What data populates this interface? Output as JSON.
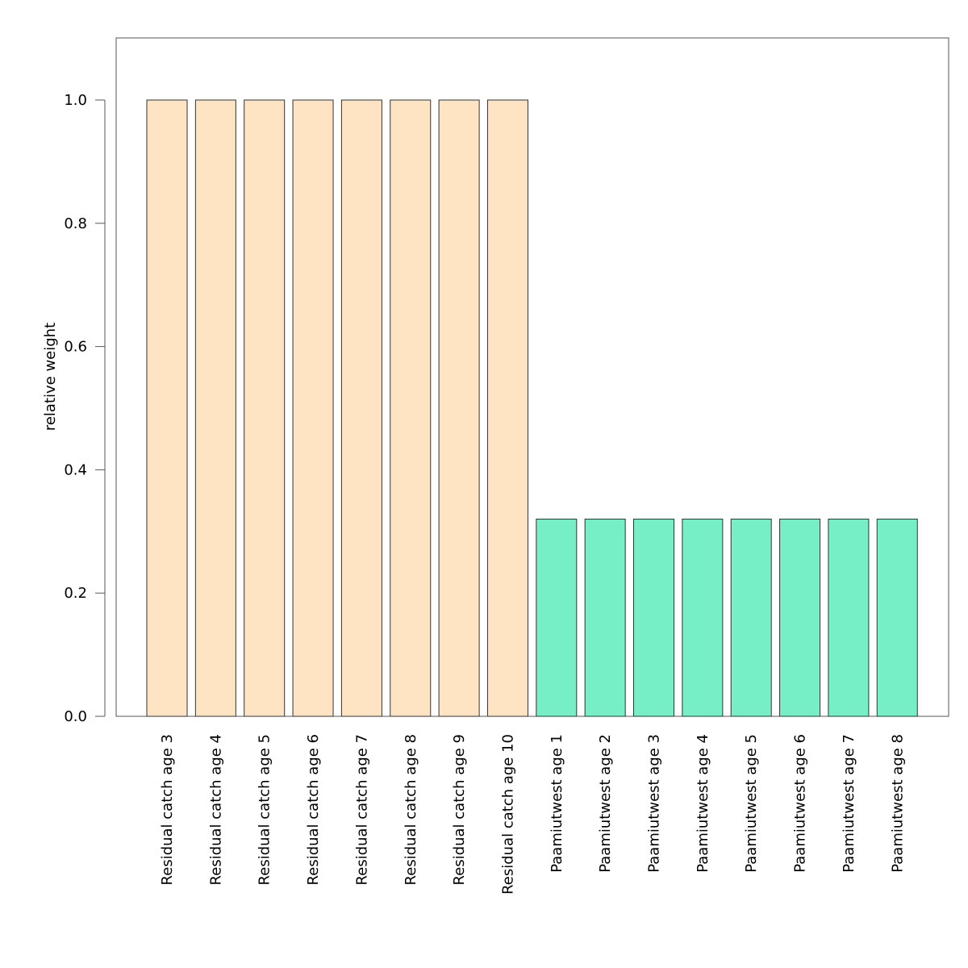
{
  "chart_data": {
    "type": "bar",
    "ylabel": "relative weight",
    "ylim": [
      0,
      1.1
    ],
    "yticks": [
      "0.0",
      "0.2",
      "0.4",
      "0.6",
      "0.8",
      "1.0"
    ],
    "grid": false,
    "categories": [
      "Residual catch age 3",
      "Residual catch age 4",
      "Residual catch age 5",
      "Residual catch age 6",
      "Residual catch age 7",
      "Residual catch age 8",
      "Residual catch age 9",
      "Residual catch age 10",
      "Paamiutwest age 1",
      "Paamiutwest age 2",
      "Paamiutwest age 3",
      "Paamiutwest age 4",
      "Paamiutwest age 5",
      "Paamiutwest age 6",
      "Paamiutwest age 7",
      "Paamiutwest age 8"
    ],
    "values": [
      1.0,
      1.0,
      1.0,
      1.0,
      1.0,
      1.0,
      1.0,
      1.0,
      0.32,
      0.32,
      0.32,
      0.32,
      0.32,
      0.32,
      0.32,
      0.32
    ],
    "colors": [
      "#ffe4c4",
      "#ffe4c4",
      "#ffe4c4",
      "#ffe4c4",
      "#ffe4c4",
      "#ffe4c4",
      "#ffe4c4",
      "#ffe4c4",
      "#76eec6",
      "#76eec6",
      "#76eec6",
      "#76eec6",
      "#76eec6",
      "#76eec6",
      "#76eec6",
      "#76eec6"
    ]
  }
}
